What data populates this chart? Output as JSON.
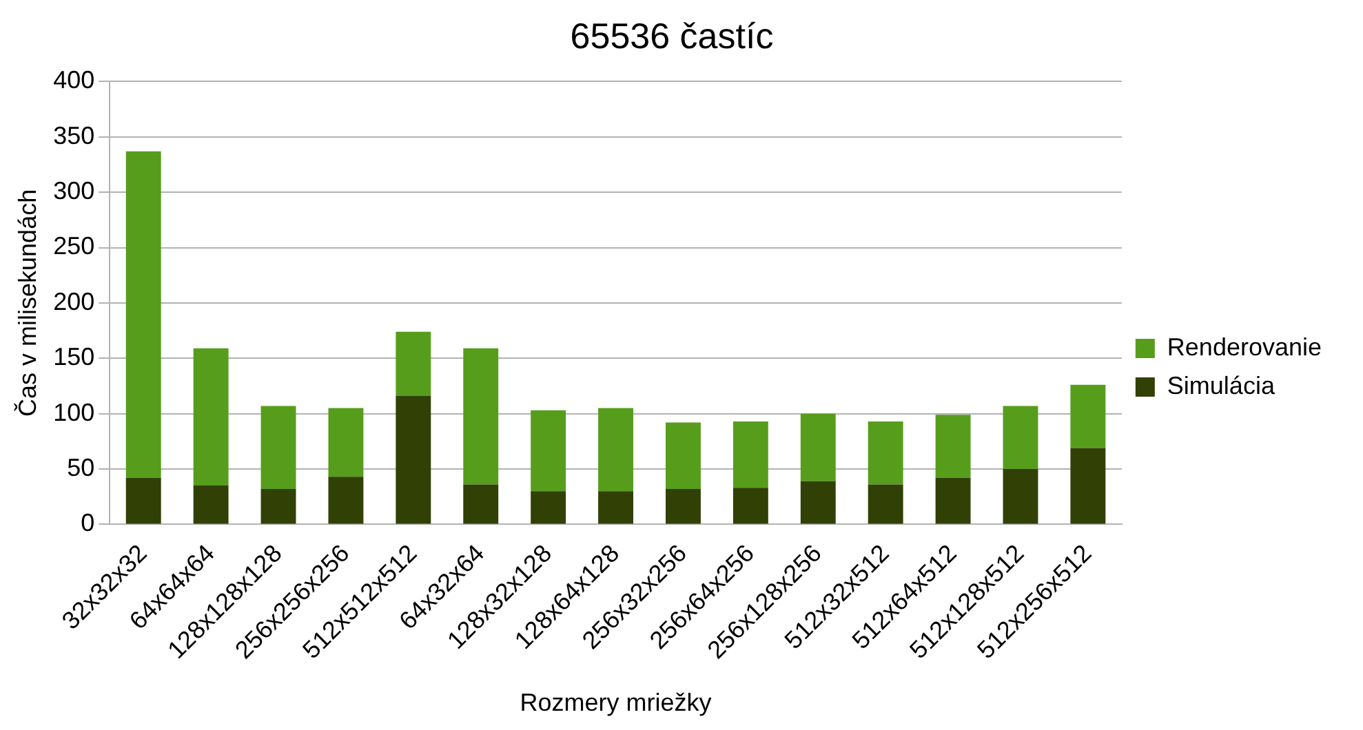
{
  "chart_data": {
    "type": "bar",
    "title": "65536 častíc",
    "xlabel": "Rozmery mriežky",
    "ylabel": "Čas v milisekundách",
    "categories": [
      "32x32x32",
      "64x64x64",
      "128x128x128",
      "256x256x256",
      "512x512x512",
      "64x32x64",
      "128x32x128",
      "128x64x128",
      "256x32x256",
      "256x64x256",
      "256x128x256",
      "512x32x512",
      "512x64x512",
      "512x128x512",
      "512x256x512"
    ],
    "series": [
      {
        "name": "Simulácia",
        "color": "#314004",
        "values": [
          42,
          35,
          32,
          43,
          116,
          36,
          30,
          30,
          32,
          33,
          39,
          36,
          42,
          50,
          69
        ]
      },
      {
        "name": "Renderovanie",
        "color": "#579d1c",
        "values": [
          295,
          124,
          75,
          62,
          58,
          123,
          73,
          75,
          60,
          60,
          61,
          57,
          57,
          57,
          57
        ]
      }
    ],
    "stacked": true,
    "ylim": [
      0,
      400
    ],
    "yticks": [
      0,
      50,
      100,
      150,
      200,
      250,
      300,
      350,
      400
    ],
    "grid": "y",
    "legend": "right"
  }
}
